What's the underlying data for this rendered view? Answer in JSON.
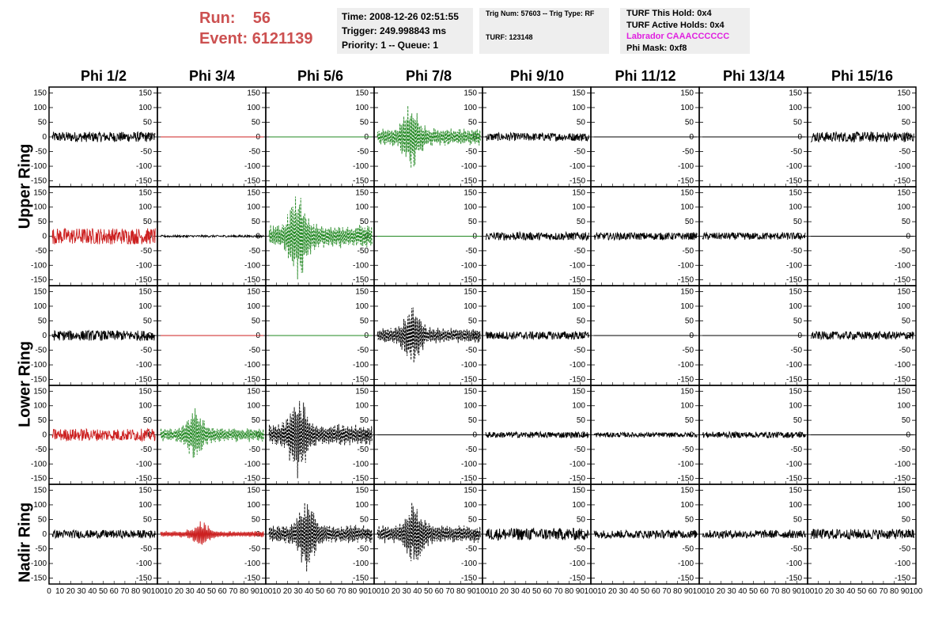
{
  "header": {
    "run_label": "Run:",
    "run_value": "56",
    "event_label": "Event:",
    "event_value": "6121139",
    "time": "Time: 2008-12-26 02:51:55",
    "trigger": "Trigger: 249.998843 ms",
    "priority": "Priority: 1 -- Queue: 1",
    "trig_num": "Trig Num: 57603 -- Trig Type: RF",
    "turf": "TURF: 123148",
    "turf_hold": "TURF This Hold: 0x4",
    "turf_active": "TURF Active Holds: 0x4",
    "labrador": "Labrador CAAACCCCCC",
    "phi_mask": "Phi Mask: 0xf8"
  },
  "colors": {
    "run_text": "#cc5050",
    "labrador_text": "#e020e0",
    "trace_black": "#000000",
    "trace_red": "#cc2020",
    "trace_green": "#228822",
    "info_bg": "#eeeeee"
  },
  "columns": [
    "Phi 1/2",
    "Phi 3/4",
    "Phi 5/6",
    "Phi 7/8",
    "Phi 9/10",
    "Phi 11/12",
    "Phi 13/14",
    "Phi 15/16"
  ],
  "rings": [
    "Upper Ring",
    "Lower Ring",
    "Nadir Ring"
  ],
  "chart_data": {
    "type": "line",
    "y_ticks": [
      150,
      100,
      50,
      0,
      -50,
      -100,
      -150
    ],
    "ylim": [
      -170,
      170
    ],
    "xlim": [
      0,
      100
    ],
    "x_tick_labels_text": [
      "0 10 20 30 40 50 60 70 80 90 100",
      "10 20 30 40 50 60 70 80 90 100",
      "10 20 30 40 50 60 70 80 90 100",
      "10 20 30 40 50 60 70 80 90 100",
      "10 20 30 40 50 60 70 80 90 100",
      "10 20 30 40 50 60 70 80 90 100",
      "10 20 30 40 50 60 70 80 90 100",
      "10 20 30 40 50 60 70 80 90 100"
    ],
    "x_ticks": [
      0,
      10,
      20,
      30,
      40,
      50,
      60,
      70,
      80,
      90,
      100
    ],
    "panels": [
      [
        {
          "color": "black",
          "style": "solid",
          "amp": 25,
          "type": "noise"
        },
        {
          "color": "red",
          "style": "solid",
          "amp": 0,
          "type": "flat"
        },
        {
          "color": "green",
          "style": "solid",
          "amp": 0,
          "type": "flat"
        },
        {
          "color": "green",
          "style": "dashed",
          "amp": 125,
          "type": "pulse",
          "center": 35
        },
        {
          "color": "black",
          "style": "solid",
          "amp": 20,
          "type": "noise"
        },
        {
          "color": "black",
          "style": "solid",
          "amp": 0,
          "type": "flat"
        },
        {
          "color": "black",
          "style": "solid",
          "amp": 0,
          "type": "flat"
        },
        {
          "color": "black",
          "style": "solid",
          "amp": 25,
          "type": "noise"
        }
      ],
      [
        {
          "color": "red",
          "style": "solid",
          "amp": 40,
          "type": "noise"
        },
        {
          "color": "black",
          "style": "solid",
          "amp": 5,
          "type": "noise"
        },
        {
          "color": "green",
          "style": "dashed",
          "amp": 165,
          "type": "pulse",
          "center": 30
        },
        {
          "color": "green",
          "style": "solid",
          "amp": 0,
          "type": "flat"
        },
        {
          "color": "black",
          "style": "solid",
          "amp": 20,
          "type": "noise"
        },
        {
          "color": "black",
          "style": "solid",
          "amp": 18,
          "type": "noise"
        },
        {
          "color": "black",
          "style": "solid",
          "amp": 18,
          "type": "noise"
        },
        {
          "color": "black",
          "style": "solid",
          "amp": 0,
          "type": "flat"
        }
      ],
      [
        {
          "color": "black",
          "style": "solid",
          "amp": 25,
          "type": "noise"
        },
        {
          "color": "red",
          "style": "solid",
          "amp": 0,
          "type": "flat"
        },
        {
          "color": "green",
          "style": "solid",
          "amp": 0,
          "type": "flat"
        },
        {
          "color": "black",
          "style": "dashed",
          "amp": 110,
          "type": "pulse",
          "center": 35
        },
        {
          "color": "black",
          "style": "solid",
          "amp": 20,
          "type": "noise"
        },
        {
          "color": "black",
          "style": "solid",
          "amp": 0,
          "type": "flat"
        },
        {
          "color": "black",
          "style": "solid",
          "amp": 0,
          "type": "flat"
        },
        {
          "color": "black",
          "style": "solid",
          "amp": 20,
          "type": "noise"
        }
      ],
      [
        {
          "color": "red",
          "style": "solid",
          "amp": 30,
          "type": "noise"
        },
        {
          "color": "green",
          "style": "dashed",
          "amp": 100,
          "type": "pulse",
          "center": 35
        },
        {
          "color": "black",
          "style": "dashed",
          "amp": 155,
          "type": "pulse",
          "center": 30
        },
        {
          "color": "black",
          "style": "solid",
          "amp": 0,
          "type": "flat"
        },
        {
          "color": "black",
          "style": "solid",
          "amp": 15,
          "type": "noise"
        },
        {
          "color": "black",
          "style": "solid",
          "amp": 12,
          "type": "noise"
        },
        {
          "color": "black",
          "style": "solid",
          "amp": 15,
          "type": "noise"
        },
        {
          "color": "black",
          "style": "solid",
          "amp": 0,
          "type": "flat"
        }
      ],
      [
        {
          "color": "black",
          "style": "solid",
          "amp": 20,
          "type": "noise"
        },
        {
          "color": "red",
          "style": "solid",
          "amp": 45,
          "type": "pulse",
          "center": 40
        },
        {
          "color": "black",
          "style": "dashed",
          "amp": 130,
          "type": "pulse",
          "center": 38
        },
        {
          "color": "black",
          "style": "dashed",
          "amp": 125,
          "type": "pulse",
          "center": 37
        },
        {
          "color": "black",
          "style": "solid",
          "amp": 30,
          "type": "noise"
        },
        {
          "color": "black",
          "style": "solid",
          "amp": 20,
          "type": "noise"
        },
        {
          "color": "black",
          "style": "solid",
          "amp": 20,
          "type": "noise"
        },
        {
          "color": "black",
          "style": "solid",
          "amp": 25,
          "type": "noise"
        }
      ]
    ]
  }
}
